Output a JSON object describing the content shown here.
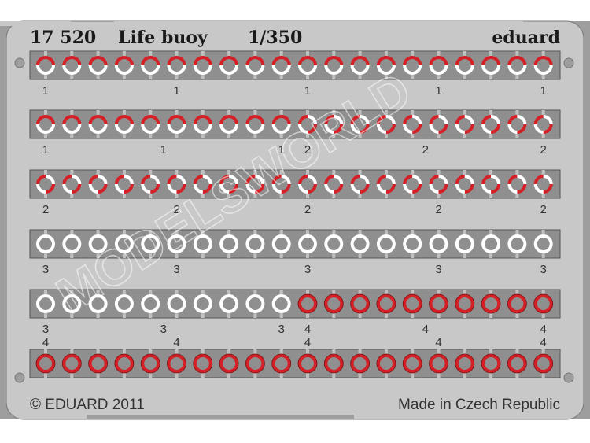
{
  "header": {
    "code": "17 520",
    "name": "Life buoy",
    "scale": "1/350",
    "brand": "eduard"
  },
  "footer": {
    "copyright": "© EDUARD 2011",
    "origin": "Made in Czech Republic"
  },
  "watermark": "MODELSWORLD",
  "colors": {
    "plate": "#c8c8c8",
    "frame": "#9e9e9e",
    "strip": "#8f8f8f",
    "red": "#d42027",
    "white": "#ffffff"
  },
  "rows": [
    {
      "types": [
        1,
        1,
        1,
        1,
        1,
        1,
        1,
        1,
        1,
        1,
        1,
        1,
        1,
        1,
        1,
        1,
        1,
        1,
        1,
        1
      ],
      "labels_below": [
        {
          "t": "1",
          "i": 0
        },
        {
          "t": "1",
          "i": 5
        },
        {
          "t": "1",
          "i": 10
        },
        {
          "t": "1",
          "i": 15
        },
        {
          "t": "1",
          "i": 19
        }
      ]
    },
    {
      "types": [
        1,
        1,
        1,
        1,
        1,
        1,
        1,
        1,
        1,
        1,
        2,
        2,
        2,
        2,
        2,
        2,
        2,
        2,
        2,
        2
      ],
      "labels_below": [
        {
          "t": "1",
          "i": 0
        },
        {
          "t": "1",
          "i": 4.5
        },
        {
          "t": "1",
          "i": 9
        },
        {
          "t": "2",
          "i": 10
        },
        {
          "t": "2",
          "i": 14.5
        },
        {
          "t": "2",
          "i": 19
        }
      ]
    },
    {
      "types": [
        2,
        2,
        2,
        2,
        2,
        2,
        2,
        2,
        2,
        2,
        2,
        2,
        2,
        2,
        2,
        2,
        2,
        2,
        2,
        2
      ],
      "labels_below": [
        {
          "t": "2",
          "i": 0
        },
        {
          "t": "2",
          "i": 5
        },
        {
          "t": "2",
          "i": 10
        },
        {
          "t": "2",
          "i": 15
        },
        {
          "t": "2",
          "i": 19
        }
      ]
    },
    {
      "types": [
        3,
        3,
        3,
        3,
        3,
        3,
        3,
        3,
        3,
        3,
        3,
        3,
        3,
        3,
        3,
        3,
        3,
        3,
        3,
        3
      ],
      "labels_below": [
        {
          "t": "3",
          "i": 0
        },
        {
          "t": "3",
          "i": 5
        },
        {
          "t": "3",
          "i": 10
        },
        {
          "t": "3",
          "i": 15
        },
        {
          "t": "3",
          "i": 19
        }
      ]
    },
    {
      "types": [
        3,
        3,
        3,
        3,
        3,
        3,
        3,
        3,
        3,
        3,
        4,
        4,
        4,
        4,
        4,
        4,
        4,
        4,
        4,
        4
      ],
      "labels_below": [
        {
          "t": "3",
          "i": 0
        },
        {
          "t": "3",
          "i": 4.5
        },
        {
          "t": "3",
          "i": 9
        },
        {
          "t": "4",
          "i": 10
        },
        {
          "t": "4",
          "i": 14.5
        },
        {
          "t": "4",
          "i": 19
        }
      ]
    },
    {
      "types": [
        4,
        4,
        4,
        4,
        4,
        4,
        4,
        4,
        4,
        4,
        4,
        4,
        4,
        4,
        4,
        4,
        4,
        4,
        4,
        4
      ],
      "labels_above": [
        {
          "t": "4",
          "i": 0
        },
        {
          "t": "4",
          "i": 5
        },
        {
          "t": "4",
          "i": 10
        },
        {
          "t": "4",
          "i": 15
        },
        {
          "t": "4",
          "i": 19
        }
      ]
    }
  ]
}
